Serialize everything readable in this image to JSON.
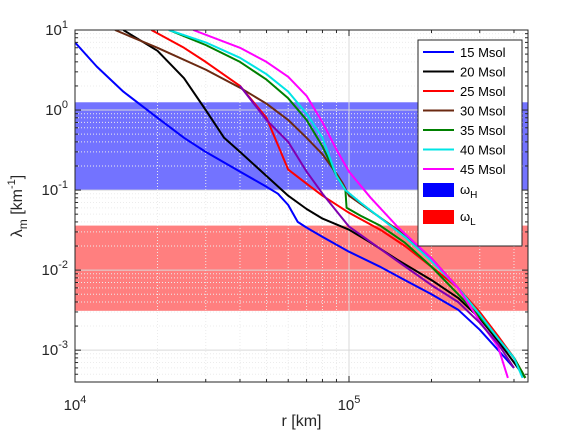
{
  "chart_data": {
    "type": "line",
    "xscale": "log",
    "yscale": "log",
    "xlim": [
      10000,
      450000
    ],
    "ylim": [
      0.0004,
      10
    ],
    "xlabel": "r [km]",
    "ylabel": "λm [km-1]",
    "ylabel_parts": {
      "symbol": "λ",
      "sub": "m",
      "unit": "[km",
      "sup": "-1",
      "close": "]"
    },
    "xticks": [
      {
        "value": 10000,
        "base": "10",
        "exp": "4"
      },
      {
        "value": 100000,
        "base": "10",
        "exp": "5"
      }
    ],
    "yticks": [
      {
        "value": 0.001,
        "base": "10",
        "exp": "-3"
      },
      {
        "value": 0.01,
        "base": "10",
        "exp": "-2"
      },
      {
        "value": 0.1,
        "base": "10",
        "exp": "-1"
      },
      {
        "value": 1,
        "base": "10",
        "exp": "0"
      },
      {
        "value": 10,
        "base": "10",
        "exp": "1"
      }
    ],
    "grid": true,
    "legend_position": "top-right",
    "bands": [
      {
        "name": "ωH",
        "symbol": "ω",
        "sub": "H",
        "y_range": [
          0.1,
          1.25
        ],
        "color": "#0000ff",
        "opacity": 0.55
      },
      {
        "name": "ωL",
        "symbol": "ω",
        "sub": "L",
        "y_range": [
          0.0031,
          0.036
        ],
        "color": "#ff0000",
        "opacity": 0.5
      }
    ],
    "series": [
      {
        "name": "15 Msol",
        "color": "#0000ff",
        "points": [
          [
            10000,
            7
          ],
          [
            12000,
            3.5
          ],
          [
            15000,
            1.7
          ],
          [
            20000,
            0.8
          ],
          [
            25000,
            0.45
          ],
          [
            30000,
            0.3
          ],
          [
            40000,
            0.17
          ],
          [
            50000,
            0.11
          ],
          [
            55000,
            0.09
          ],
          [
            60000,
            0.065
          ],
          [
            65000,
            0.04
          ],
          [
            70000,
            0.034
          ],
          [
            80000,
            0.026
          ],
          [
            100000,
            0.017
          ],
          [
            130000,
            0.011
          ],
          [
            160000,
            0.0075
          ],
          [
            200000,
            0.005
          ],
          [
            250000,
            0.0032
          ],
          [
            300000,
            0.0018
          ],
          [
            350000,
            0.001
          ],
          [
            400000,
            0.0006
          ]
        ]
      },
      {
        "name": "20 Msol",
        "color": "#000000",
        "points": [
          [
            15000,
            10
          ],
          [
            20000,
            5.5
          ],
          [
            25000,
            2.5
          ],
          [
            30000,
            1
          ],
          [
            35000,
            0.45
          ],
          [
            40000,
            0.3
          ],
          [
            50000,
            0.15
          ],
          [
            60000,
            0.085
          ],
          [
            70000,
            0.058
          ],
          [
            80000,
            0.044
          ],
          [
            100000,
            0.032
          ],
          [
            120000,
            0.022
          ],
          [
            150000,
            0.0135
          ],
          [
            200000,
            0.0075
          ],
          [
            250000,
            0.0045
          ],
          [
            300000,
            0.0025
          ],
          [
            350000,
            0.0013
          ],
          [
            400000,
            0.0007
          ],
          [
            440000,
            0.00045
          ]
        ]
      },
      {
        "name": "25 Msol",
        "color": "#ff0000",
        "points": [
          [
            19000,
            10
          ],
          [
            25000,
            6
          ],
          [
            30000,
            4
          ],
          [
            40000,
            2
          ],
          [
            50000,
            0.8
          ],
          [
            60000,
            0.18
          ],
          [
            70000,
            0.12
          ],
          [
            80000,
            0.085
          ],
          [
            100000,
            0.052
          ],
          [
            130000,
            0.032
          ],
          [
            160000,
            0.02
          ],
          [
            200000,
            0.011
          ],
          [
            250000,
            0.006
          ],
          [
            300000,
            0.003
          ],
          [
            350000,
            0.0015
          ],
          [
            400000,
            0.0008
          ],
          [
            440000,
            0.00045
          ]
        ]
      },
      {
        "name": "30 Msol",
        "color": "#6b2a12",
        "points": [
          [
            14000,
            10
          ],
          [
            20000,
            6
          ],
          [
            30000,
            3.2
          ],
          [
            40000,
            1.9
          ],
          [
            50000,
            1.2
          ],
          [
            60000,
            0.75
          ],
          [
            70000,
            0.45
          ],
          [
            80000,
            0.28
          ],
          [
            90000,
            0.16
          ],
          [
            95000,
            0.12
          ],
          [
            100000,
            0.085
          ],
          [
            120000,
            0.055
          ],
          [
            150000,
            0.032
          ],
          [
            200000,
            0.014
          ],
          [
            250000,
            0.006
          ],
          [
            300000,
            0.0028
          ],
          [
            350000,
            0.0014
          ],
          [
            400000,
            0.0008
          ],
          [
            440000,
            0.00045
          ]
        ]
      },
      {
        "name": "35 Msol",
        "color": "#008000",
        "points": [
          [
            22000,
            10
          ],
          [
            30000,
            6.5
          ],
          [
            40000,
            4
          ],
          [
            50000,
            2.4
          ],
          [
            60000,
            1.4
          ],
          [
            70000,
            0.75
          ],
          [
            80000,
            0.35
          ],
          [
            90000,
            0.15
          ],
          [
            97000,
            0.1
          ],
          [
            98000,
            0.06
          ],
          [
            110000,
            0.048
          ],
          [
            130000,
            0.036
          ],
          [
            160000,
            0.022
          ],
          [
            200000,
            0.011
          ],
          [
            250000,
            0.005
          ],
          [
            300000,
            0.0026
          ],
          [
            350000,
            0.0014
          ],
          [
            400000,
            0.0008
          ],
          [
            440000,
            0.00045
          ]
        ]
      },
      {
        "name": "40 Msol",
        "color": "#00e5e5",
        "points": [
          [
            22000,
            10
          ],
          [
            30000,
            7
          ],
          [
            40000,
            4.5
          ],
          [
            50000,
            2.8
          ],
          [
            60000,
            1.7
          ],
          [
            70000,
            0.9
          ],
          [
            80000,
            0.45
          ],
          [
            90000,
            0.15
          ],
          [
            97000,
            0.1
          ],
          [
            110000,
            0.07
          ],
          [
            130000,
            0.045
          ],
          [
            160000,
            0.026
          ],
          [
            200000,
            0.013
          ],
          [
            250000,
            0.006
          ],
          [
            300000,
            0.0028
          ],
          [
            350000,
            0.0014
          ],
          [
            400000,
            0.0008
          ],
          [
            430000,
            0.00045
          ]
        ]
      },
      {
        "name": "45 Msol",
        "color": "#ff00ff",
        "points": [
          [
            27000,
            10
          ],
          [
            40000,
            6
          ],
          [
            50000,
            4
          ],
          [
            60000,
            2.6
          ],
          [
            70000,
            1.5
          ],
          [
            80000,
            0.7
          ],
          [
            90000,
            0.32
          ],
          [
            100000,
            0.17
          ],
          [
            120000,
            0.08
          ],
          [
            150000,
            0.035
          ],
          [
            200000,
            0.014
          ],
          [
            250000,
            0.006
          ],
          [
            300000,
            0.0023
          ],
          [
            350000,
            0.0011
          ],
          [
            380000,
            0.00045
          ]
        ]
      },
      {
        "name": "",
        "color": "#8000b0",
        "points": [
          [
            40000,
            2
          ],
          [
            50000,
            0.75
          ],
          [
            60000,
            0.4
          ],
          [
            70000,
            0.17
          ],
          [
            80000,
            0.09
          ],
          [
            100000,
            0.035
          ],
          [
            150000,
            0.013
          ],
          [
            200000,
            0.0065
          ],
          [
            250000,
            0.004
          ],
          [
            300000,
            0.0022
          ],
          [
            350000,
            0.0012
          ],
          [
            400000,
            0.0006
          ]
        ]
      }
    ],
    "legend": [
      {
        "label": "15 Msol",
        "color": "#0000ff",
        "kind": "line"
      },
      {
        "label": "20 Msol",
        "color": "#000000",
        "kind": "line"
      },
      {
        "label": "25 Msol",
        "color": "#ff0000",
        "kind": "line"
      },
      {
        "label": "30 Msol",
        "color": "#6b2a12",
        "kind": "line"
      },
      {
        "label": "35 Msol",
        "color": "#008000",
        "kind": "line"
      },
      {
        "label": "40 Msol",
        "color": "#00e5e5",
        "kind": "line"
      },
      {
        "label": "45 Msol",
        "color": "#ff00ff",
        "kind": "line"
      },
      {
        "symbol": "ω",
        "sub": "H",
        "color": "#0000ff",
        "kind": "patch"
      },
      {
        "symbol": "ω",
        "sub": "L",
        "color": "#ff0000",
        "kind": "patch"
      }
    ]
  }
}
